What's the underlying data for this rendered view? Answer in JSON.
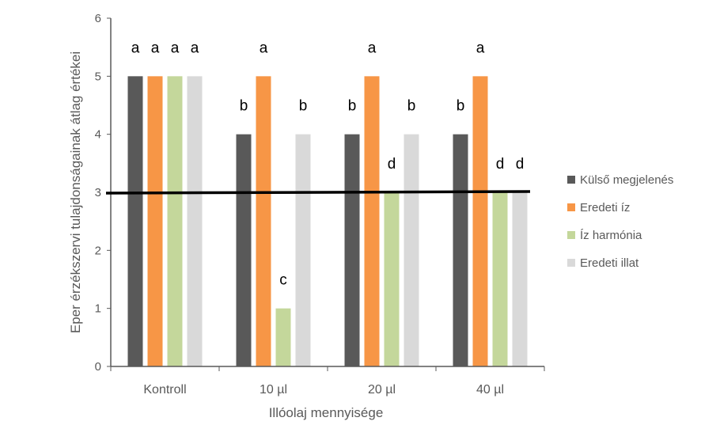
{
  "chart_data": {
    "type": "bar",
    "title": "",
    "xlabel": "Illóolaj mennyisége",
    "ylabel": "Eper érzékszervi tulajdonságainak átlag értékei",
    "ylim": [
      0,
      6
    ],
    "yticks": [
      "0",
      "1",
      "2",
      "3",
      "4",
      "5",
      "6"
    ],
    "categories": [
      "Kontroll",
      "10 µl",
      "20 µl",
      "40 µl"
    ],
    "series": [
      {
        "name": "Külső megjelenés",
        "color": "#595959",
        "values": [
          5,
          4,
          4,
          4
        ],
        "labels": [
          "a",
          "b",
          "b",
          "b"
        ]
      },
      {
        "name": "Eredeti íz",
        "color": "#f79646",
        "values": [
          5,
          5,
          5,
          5
        ],
        "labels": [
          "a",
          "a",
          "a",
          "a"
        ]
      },
      {
        "name": "Íz harmónia",
        "color": "#c4d79b",
        "values": [
          5,
          1,
          3,
          3
        ],
        "labels": [
          "a",
          "c",
          "d",
          "d"
        ]
      },
      {
        "name": "Eredeti illat",
        "color": "#d9d9d9",
        "values": [
          5,
          4,
          4,
          3
        ],
        "labels": [
          "a",
          "b",
          "b",
          "d"
        ]
      }
    ],
    "reference_line": {
      "value": 3,
      "color": "#000000"
    },
    "grid": false,
    "legend": "right"
  }
}
